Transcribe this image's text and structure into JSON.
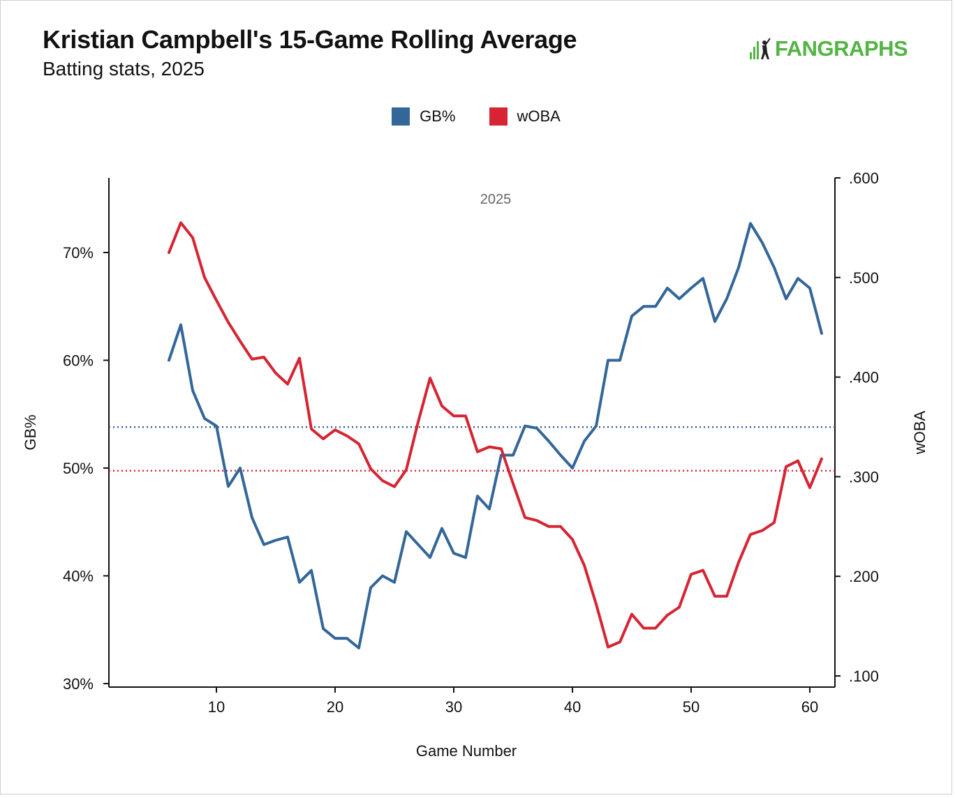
{
  "header": {
    "title": "Kristian Campbell's 15-Game Rolling Average",
    "subtitle": "Batting stats, 2025",
    "logo_text": "FANGRAPHS"
  },
  "colors": {
    "gb": "#336699",
    "woba": "#d62433",
    "brand": "#52b442"
  },
  "chart_data": {
    "type": "line",
    "annotation": "2025",
    "xlabel": "Game Number",
    "ylabel_left": "GB%",
    "ylabel_right": "wOBA",
    "xlim": [
      1,
      62
    ],
    "ylim_left": [
      30,
      77
    ],
    "ylim_right": [
      0.1,
      0.6
    ],
    "x_ticks": [
      10,
      20,
      30,
      40,
      50,
      60
    ],
    "y_ticks_left": [
      {
        "value": 30,
        "label": "30%"
      },
      {
        "value": 40,
        "label": "40%"
      },
      {
        "value": 50,
        "label": "50%"
      },
      {
        "value": 60,
        "label": "60%"
      },
      {
        "value": 70,
        "label": "70%"
      }
    ],
    "y_ticks_right": [
      {
        "value": 0.1,
        "label": ".100"
      },
      {
        "value": 0.2,
        "label": ".200"
      },
      {
        "value": 0.3,
        "label": ".300"
      },
      {
        "value": 0.4,
        "label": ".400"
      },
      {
        "value": 0.5,
        "label": ".500"
      },
      {
        "value": 0.6,
        "label": ".600"
      }
    ],
    "series": [
      {
        "name": "GB%",
        "axis": "left",
        "x": [
          6,
          7,
          8,
          9,
          10,
          11,
          12,
          13,
          14,
          15,
          16,
          17,
          18,
          19,
          20,
          21,
          22,
          23,
          24,
          25,
          26,
          27,
          28,
          29,
          30,
          31,
          32,
          33,
          34,
          35,
          36,
          37,
          38,
          39,
          40,
          41,
          42,
          43,
          44,
          45,
          46,
          47,
          48,
          49,
          50,
          51,
          52,
          53,
          54,
          55,
          56,
          57,
          58,
          59,
          60,
          61
        ],
        "values": [
          60.0,
          63.3,
          57.2,
          54.6,
          53.9,
          48.3,
          50.0,
          45.4,
          42.9,
          43.3,
          43.6,
          39.4,
          40.5,
          35.1,
          34.2,
          34.2,
          33.3,
          38.9,
          40.0,
          39.4,
          44.1,
          42.9,
          41.7,
          44.4,
          42.1,
          41.7,
          47.4,
          46.2,
          51.2,
          51.2,
          53.9,
          53.7,
          52.5,
          51.2,
          50.0,
          52.5,
          53.9,
          60.0,
          60.0,
          64.1,
          65.0,
          65.0,
          66.7,
          65.7,
          66.7,
          67.6,
          63.6,
          65.7,
          68.6,
          72.7,
          70.9,
          68.6,
          65.7,
          67.6,
          66.7,
          62.5
        ]
      },
      {
        "name": "wOBA",
        "axis": "right",
        "x": [
          6,
          7,
          8,
          9,
          10,
          11,
          12,
          13,
          14,
          15,
          16,
          17,
          18,
          19,
          20,
          21,
          22,
          23,
          24,
          25,
          26,
          27,
          28,
          29,
          30,
          31,
          32,
          33,
          34,
          35,
          36,
          37,
          38,
          39,
          40,
          41,
          42,
          43,
          44,
          45,
          46,
          47,
          48,
          49,
          50,
          51,
          52,
          53,
          54,
          55,
          56,
          57,
          58,
          59,
          60,
          61
        ],
        "values": [
          0.525,
          0.555,
          0.54,
          0.5,
          0.477,
          0.455,
          0.436,
          0.418,
          0.42,
          0.404,
          0.393,
          0.419,
          0.348,
          0.338,
          0.347,
          0.341,
          0.333,
          0.308,
          0.296,
          0.29,
          0.307,
          0.355,
          0.399,
          0.371,
          0.361,
          0.361,
          0.325,
          0.33,
          0.328,
          0.293,
          0.259,
          0.256,
          0.25,
          0.25,
          0.237,
          0.211,
          0.172,
          0.129,
          0.134,
          0.162,
          0.148,
          0.148,
          0.161,
          0.169,
          0.202,
          0.206,
          0.18,
          0.18,
          0.214,
          0.242,
          0.246,
          0.254,
          0.31,
          0.316,
          0.289,
          0.318
        ]
      }
    ],
    "reference_lines": [
      {
        "series": "GB%",
        "axis": "left",
        "value": 53.8,
        "style": "dotted"
      },
      {
        "series": "wOBA",
        "axis": "right",
        "value": 0.306,
        "style": "dotted"
      }
    ],
    "legend_placement": "top-center",
    "grid": false
  }
}
